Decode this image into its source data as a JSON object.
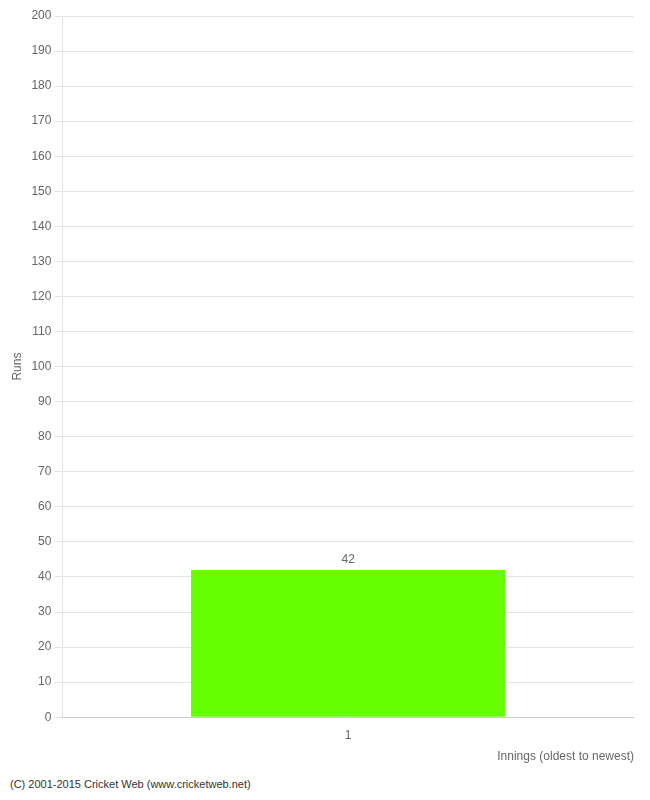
{
  "chart_data": {
    "type": "bar",
    "categories": [
      "1"
    ],
    "values": [
      42
    ],
    "color": "#66ff00",
    "xlabel": "Innings (oldest to newest)",
    "ylabel": "Runs",
    "ylim": [
      0,
      200
    ],
    "yticks": [
      0,
      10,
      20,
      30,
      40,
      50,
      60,
      70,
      80,
      90,
      100,
      110,
      120,
      130,
      140,
      150,
      160,
      170,
      180,
      190,
      200
    ],
    "grid": true,
    "data_labels": true,
    "annotations": [
      "(C) 2001-2015 Cricket Web (www.cricketweb.net)"
    ]
  }
}
